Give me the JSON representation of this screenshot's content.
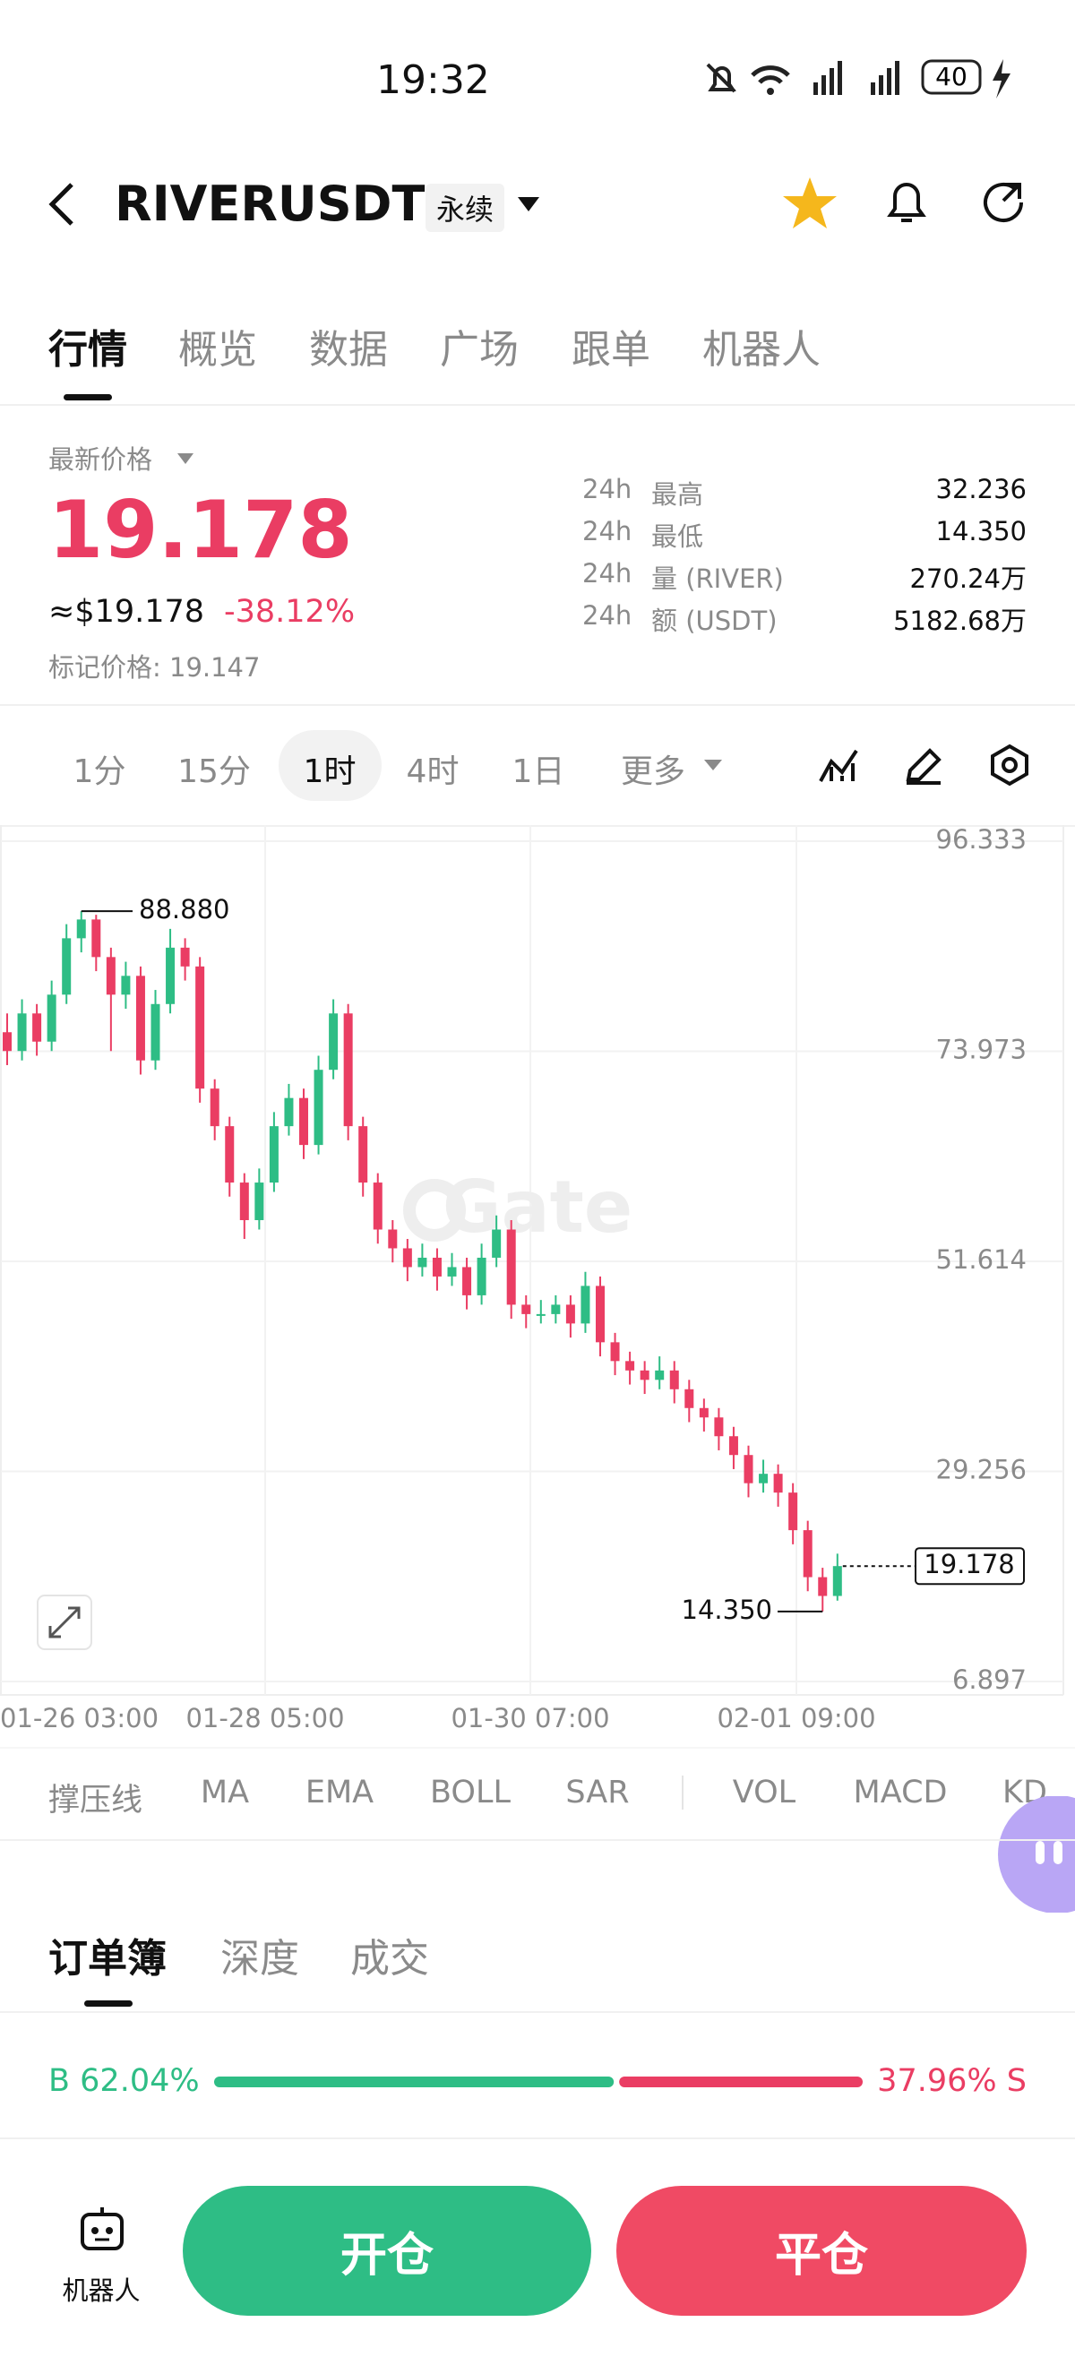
{
  "status_bar": {
    "time": "19:32",
    "battery": "40"
  },
  "header": {
    "title": "RIVERUSDT",
    "tag": "永续"
  },
  "tabs": [
    "行情",
    "概览",
    "数据",
    "广场",
    "跟单",
    "机器人"
  ],
  "price": {
    "label": "最新价格",
    "last": "19.178",
    "usd": "≈$19.178",
    "change": "-38.12%",
    "mark": "标记价格: 19.147"
  },
  "stats": [
    {
      "period": "24h",
      "label": "最高",
      "value": "32.236"
    },
    {
      "period": "24h",
      "label": "最低",
      "value": "14.350"
    },
    {
      "period": "24h",
      "label": "量 (RIVER)",
      "value": "270.24万"
    },
    {
      "period": "24h",
      "label": "额 (USDT)",
      "value": "5182.68万"
    }
  ],
  "timeframes": [
    "1分",
    "15分",
    "1时",
    "4时",
    "1日",
    "更多"
  ],
  "chart_data": {
    "type": "candlestick",
    "watermark": "Gate",
    "up_color": "#2ebd85",
    "down_color": "#ea3d63",
    "ylim": [
      6.897,
      96.333
    ],
    "yticks": [
      96.333,
      73.973,
      51.614,
      29.256,
      6.897
    ],
    "x_labels": [
      "01-26 03:00",
      "01-28 05:00",
      "01-30 07:00",
      "02-01 09:00"
    ],
    "annotations": {
      "high": {
        "value": 88.88,
        "label": "88.880"
      },
      "low": {
        "value": 14.35,
        "label": "14.350"
      },
      "last": {
        "value": 19.178,
        "label": "19.178"
      }
    },
    "candles": [
      [
        76,
        78,
        72.5,
        74
      ],
      [
        74,
        79.5,
        73,
        78
      ],
      [
        78,
        79,
        73.5,
        75
      ],
      [
        75,
        81.5,
        74,
        80
      ],
      [
        80,
        87.5,
        79,
        86
      ],
      [
        86,
        88.88,
        84.5,
        88
      ],
      [
        88,
        88.5,
        82.5,
        84
      ],
      [
        84,
        85,
        74,
        80
      ],
      [
        80,
        83.5,
        78.5,
        82
      ],
      [
        82,
        83,
        71.5,
        73
      ],
      [
        73,
        80.5,
        72,
        79
      ],
      [
        79,
        87,
        78,
        85
      ],
      [
        85,
        86,
        81.5,
        83
      ],
      [
        83,
        84,
        68.5,
        70
      ],
      [
        70,
        71,
        64.5,
        66
      ],
      [
        66,
        67,
        58.5,
        60
      ],
      [
        60,
        61,
        54,
        56
      ],
      [
        56,
        61.5,
        55,
        60
      ],
      [
        60,
        67.5,
        59,
        66
      ],
      [
        66,
        70.5,
        65,
        69
      ],
      [
        69,
        70,
        62.5,
        64
      ],
      [
        64,
        73.5,
        63,
        72
      ],
      [
        72,
        79.5,
        71,
        78
      ],
      [
        78,
        79,
        64.5,
        66
      ],
      [
        66,
        67,
        58.5,
        60
      ],
      [
        60,
        61,
        53.5,
        55
      ],
      [
        55,
        56,
        51.5,
        53
      ],
      [
        53,
        54,
        49.5,
        51
      ],
      [
        51,
        53.5,
        50,
        52
      ],
      [
        52,
        53,
        48.5,
        50
      ],
      [
        50,
        52.5,
        49,
        51
      ],
      [
        51,
        52,
        46.5,
        48
      ],
      [
        48,
        53.5,
        47,
        52
      ],
      [
        52,
        56.5,
        51,
        55
      ],
      [
        55,
        56,
        45.5,
        47
      ],
      [
        47,
        48,
        44.5,
        46
      ],
      [
        46,
        47.5,
        45,
        46
      ],
      [
        46,
        48,
        45,
        47
      ],
      [
        47,
        48,
        43.5,
        45
      ],
      [
        45,
        50.5,
        44,
        49
      ],
      [
        49,
        50,
        41.5,
        43
      ],
      [
        43,
        44,
        39.5,
        41
      ],
      [
        41,
        42,
        38.5,
        40
      ],
      [
        40,
        41,
        37.5,
        39
      ],
      [
        39,
        41.5,
        38,
        40
      ],
      [
        40,
        41,
        36.5,
        38
      ],
      [
        38,
        39,
        34.5,
        36
      ],
      [
        36,
        37,
        33.5,
        35
      ],
      [
        35,
        36,
        31.5,
        33
      ],
      [
        33,
        34,
        29.5,
        31
      ],
      [
        31,
        32,
        26.5,
        28
      ],
      [
        28,
        30.5,
        27,
        29
      ],
      [
        29,
        30,
        25.5,
        27
      ],
      [
        27,
        28,
        21.5,
        23
      ],
      [
        23,
        24,
        16.5,
        18
      ],
      [
        18,
        19,
        14.35,
        16
      ],
      [
        16,
        20.5,
        15.5,
        19.178
      ]
    ]
  },
  "indicators": [
    "撑压线",
    "MA",
    "EMA",
    "BOLL",
    "SAR",
    "VOL",
    "MACD",
    "KD"
  ],
  "orderbook_tabs": [
    "订单簿",
    "深度",
    "成交"
  ],
  "order_ratio": {
    "buy_label": "B",
    "buy": 62.04,
    "buy_text": "62.04%",
    "sell": 37.96,
    "sell_text": "37.96%",
    "sell_label": "S"
  },
  "bottom": {
    "robot": "机器人",
    "open": "开仓",
    "close": "平仓"
  }
}
